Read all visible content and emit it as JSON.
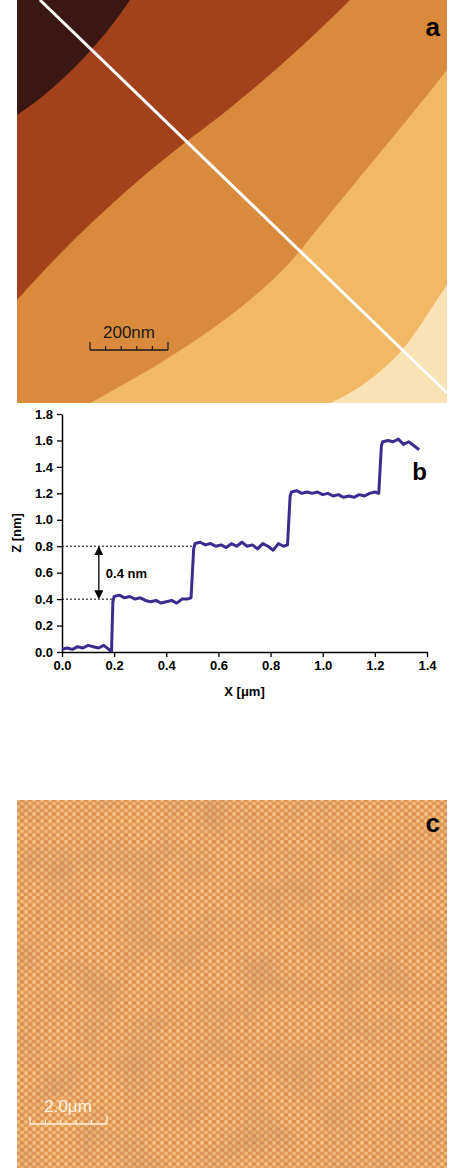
{
  "panel_a": {
    "label": "a",
    "type": "image",
    "scale_bar": "200nm"
  },
  "chart_data": {
    "type": "line",
    "panel_label": "b",
    "x_label": "X [μm]",
    "y_label": "Z [nm]",
    "x": [
      0,
      0.02,
      0.04,
      0.06,
      0.08,
      0.1,
      0.12,
      0.14,
      0.16,
      0.18,
      0.19,
      0.195,
      0.2,
      0.22,
      0.24,
      0.26,
      0.28,
      0.3,
      0.32,
      0.34,
      0.36,
      0.38,
      0.4,
      0.42,
      0.44,
      0.46,
      0.48,
      0.495,
      0.505,
      0.51,
      0.53,
      0.55,
      0.57,
      0.59,
      0.61,
      0.63,
      0.65,
      0.67,
      0.69,
      0.71,
      0.73,
      0.75,
      0.77,
      0.79,
      0.81,
      0.83,
      0.85,
      0.865,
      0.875,
      0.88,
      0.9,
      0.92,
      0.94,
      0.96,
      0.98,
      1.0,
      1.02,
      1.04,
      1.06,
      1.08,
      1.1,
      1.12,
      1.14,
      1.16,
      1.18,
      1.2,
      1.215,
      1.225,
      1.23,
      1.25,
      1.27,
      1.29,
      1.31,
      1.33,
      1.35,
      1.37
    ],
    "values": [
      0.02,
      0.03,
      0.02,
      0.04,
      0.03,
      0.05,
      0.04,
      0.03,
      0.05,
      0.02,
      0.0,
      0.38,
      0.42,
      0.43,
      0.41,
      0.42,
      0.4,
      0.41,
      0.39,
      0.38,
      0.39,
      0.37,
      0.38,
      0.39,
      0.37,
      0.4,
      0.4,
      0.41,
      0.78,
      0.82,
      0.83,
      0.81,
      0.82,
      0.8,
      0.81,
      0.79,
      0.82,
      0.8,
      0.83,
      0.8,
      0.81,
      0.78,
      0.82,
      0.8,
      0.77,
      0.82,
      0.8,
      0.81,
      1.18,
      1.21,
      1.22,
      1.2,
      1.21,
      1.2,
      1.21,
      1.19,
      1.2,
      1.18,
      1.19,
      1.17,
      1.18,
      1.17,
      1.19,
      1.18,
      1.2,
      1.21,
      1.2,
      1.56,
      1.59,
      1.6,
      1.59,
      1.61,
      1.57,
      1.59,
      1.56,
      1.53
    ],
    "color": "#3b2d8f",
    "xlim": [
      0,
      1.4
    ],
    "xticks": [
      {
        "value": 0,
        "label": "0.0"
      },
      {
        "value": 0.2,
        "label": "0.2"
      },
      {
        "value": 0.4,
        "label": "0.4"
      },
      {
        "value": 0.6,
        "label": "0.6"
      },
      {
        "value": 0.8,
        "label": "0.8"
      },
      {
        "value": 1,
        "label": "1.0"
      },
      {
        "value": 1.2,
        "label": "1.2"
      },
      {
        "value": 1.4,
        "label": "1.4"
      }
    ],
    "ylim": [
      0,
      1.8
    ],
    "yticks": [
      {
        "value": 0,
        "label": "0.0"
      },
      {
        "value": 0.2,
        "label": "0.2"
      },
      {
        "value": 0.4,
        "label": "0.4"
      },
      {
        "value": 0.6,
        "label": "0.6"
      },
      {
        "value": 0.8,
        "label": "0.8"
      },
      {
        "value": 1,
        "label": "1.0"
      },
      {
        "value": 1.2,
        "label": "1.2"
      },
      {
        "value": 1.4,
        "label": "1.4"
      },
      {
        "value": 1.6,
        "label": "1.6"
      },
      {
        "value": 1.8,
        "label": "1.8"
      }
    ],
    "annotations": [
      {
        "text": "0.4 nm",
        "y": [
          0.4,
          0.8
        ]
      }
    ],
    "grid": false
  },
  "panel_c": {
    "label": "c",
    "type": "image",
    "scale_bar": "2.0μm"
  }
}
